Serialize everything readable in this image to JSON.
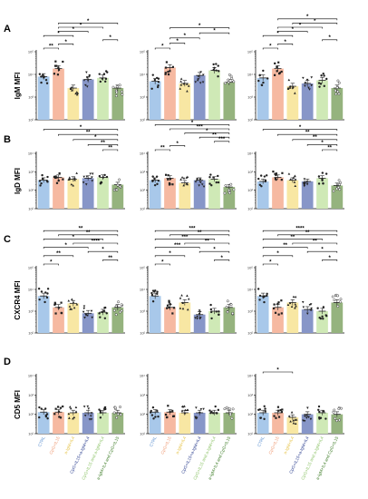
{
  "colors": {
    "CTRL": "#a8c8ea",
    "CpG+IL15": "#f6b9a1",
    "a-IgM+IL4": "#f8e7a3",
    "CpG+IL15+a-IgM+IL4": "#8796c8",
    "CpG+IL15 and a-IgM+IL4": "#cfe9b6",
    "a-IgM+IL4 and CpG+IL15": "#95b37e"
  },
  "label_colors": {
    "CTRL": "#5b8fd0",
    "CpG+IL15": "#ef9a73",
    "a-IgM+IL4": "#e6c44a",
    "CpG+IL15+a-IgM+IL4": "#2c3f8f",
    "CpG+IL15 and a-IgM+IL4": "#8fc46b",
    "a-IgM+IL4 and CpG+IL15": "#3f7d28"
  },
  "chart_data": [
    {
      "row": "A",
      "col": 1,
      "type": "bar",
      "ylabel": "IgM MFI",
      "log_scale": true,
      "ylim_exp": [
        2,
        5
      ],
      "tick_labels": [
        "10²",
        "10³",
        "10⁴",
        "10⁵"
      ],
      "categories": [
        "CTRL",
        "CpG+IL15",
        "a-IgM+IL4",
        "CpG+IL15+a-IgM+IL4",
        "CpG+IL15 and a-IgM+IL4",
        "a-IgM+IL4 and CpG+IL15"
      ],
      "values": [
        8000,
        18000,
        2500,
        6000,
        7000,
        2500
      ],
      "significance": [
        {
          "from": 0,
          "to": 1,
          "label": "**"
        },
        {
          "from": 0,
          "to": 2,
          "label": "*"
        },
        {
          "from": 1,
          "to": 2,
          "label": "*"
        },
        {
          "from": 1,
          "to": 3,
          "label": "*"
        },
        {
          "from": 1,
          "to": 4,
          "label": "*"
        },
        {
          "from": 1,
          "to": 5,
          "label": "*"
        },
        {
          "from": 4,
          "to": 5,
          "label": "*"
        }
      ]
    },
    {
      "row": "A",
      "col": 2,
      "type": "bar",
      "ylabel": "",
      "log_scale": true,
      "ylim_exp": [
        2,
        5
      ],
      "tick_labels": [
        "10²",
        "10³",
        "10⁴",
        "10⁵"
      ],
      "categories": [
        "CTRL",
        "CpG+IL15",
        "a-IgM+IL4",
        "CpG+IL15+a-IgM+IL4",
        "CpG+IL15 and a-IgM+IL4",
        "a-IgM+IL4 and CpG+IL15"
      ],
      "values": [
        5000,
        20000,
        4000,
        9000,
        15000,
        4500
      ],
      "significance": [
        {
          "from": 0,
          "to": 1,
          "label": "*"
        },
        {
          "from": 1,
          "to": 2,
          "label": "*"
        },
        {
          "from": 1,
          "to": 3,
          "label": "*"
        },
        {
          "from": 1,
          "to": 5,
          "label": "*"
        },
        {
          "from": 3,
          "to": 5,
          "label": "*"
        }
      ]
    },
    {
      "row": "A",
      "col": 3,
      "type": "bar",
      "ylabel": "",
      "log_scale": true,
      "ylim_exp": [
        2,
        5
      ],
      "tick_labels": [
        "10²",
        "10³",
        "10⁴",
        "10⁵"
      ],
      "categories": [
        "CTRL",
        "CpG+IL15",
        "a-IgM+IL4",
        "CpG+IL15+a-IgM+IL4",
        "CpG+IL15 and a-IgM+IL4",
        "a-IgM+IL4 and CpG+IL15"
      ],
      "values": [
        7000,
        18000,
        3000,
        4000,
        5500,
        2500
      ],
      "significance": [
        {
          "from": 0,
          "to": 1,
          "label": "*"
        },
        {
          "from": 0,
          "to": 2,
          "label": "*"
        },
        {
          "from": 1,
          "to": 2,
          "label": "*"
        },
        {
          "from": 1,
          "to": 3,
          "label": "*"
        },
        {
          "from": 1,
          "to": 4,
          "label": "*"
        },
        {
          "from": 1,
          "to": 5,
          "label": "*"
        },
        {
          "from": 2,
          "to": 5,
          "label": "*"
        },
        {
          "from": 4,
          "to": 5,
          "label": "*"
        }
      ]
    },
    {
      "row": "B",
      "col": 1,
      "type": "bar",
      "ylabel": "IgD MFI",
      "log_scale": true,
      "ylim_exp": [
        1,
        4
      ],
      "tick_labels": [
        "10¹",
        "10²",
        "10³",
        "10⁴"
      ],
      "categories": [
        "CTRL",
        "CpG+IL15",
        "a-IgM+IL4",
        "CpG+IL15+a-IgM+IL4",
        "CpG+IL15 and a-IgM+IL4",
        "a-IgM+IL4 and CpG+IL15"
      ],
      "values": [
        350,
        500,
        400,
        450,
        500,
        200
      ],
      "significance": [
        {
          "from": 0,
          "to": 5,
          "label": "*"
        },
        {
          "from": 1,
          "to": 5,
          "label": "**"
        },
        {
          "from": 2,
          "to": 5,
          "label": "*"
        },
        {
          "from": 3,
          "to": 5,
          "label": "**"
        },
        {
          "from": 4,
          "to": 5,
          "label": "**"
        }
      ]
    },
    {
      "row": "B",
      "col": 2,
      "type": "bar",
      "ylabel": "",
      "log_scale": true,
      "ylim_exp": [
        1,
        4
      ],
      "tick_labels": [
        "10¹",
        "10²",
        "10³",
        "10⁴"
      ],
      "categories": [
        "CTRL",
        "CpG+IL15",
        "a-IgM+IL4",
        "CpG+IL15+a-IgM+IL4",
        "CpG+IL15 and a-IgM+IL4",
        "a-IgM+IL4 and CpG+IL15"
      ],
      "values": [
        350,
        450,
        250,
        350,
        400,
        150
      ],
      "significance": [
        {
          "from": 0,
          "to": 1,
          "label": "**"
        },
        {
          "from": 0,
          "to": 5,
          "label": "*"
        },
        {
          "from": 1,
          "to": 2,
          "label": "*"
        },
        {
          "from": 1,
          "to": 5,
          "label": "***"
        },
        {
          "from": 2,
          "to": 5,
          "label": "*"
        },
        {
          "from": 3,
          "to": 5,
          "label": "**"
        },
        {
          "from": 4,
          "to": 5,
          "label": "***"
        }
      ]
    },
    {
      "row": "B",
      "col": 3,
      "type": "bar",
      "ylabel": "",
      "log_scale": true,
      "ylim_exp": [
        1,
        4
      ],
      "tick_labels": [
        "10¹",
        "10²",
        "10³",
        "10⁴"
      ],
      "categories": [
        "CTRL",
        "CpG+IL15",
        "a-IgM+IL4",
        "CpG+IL15+a-IgM+IL4",
        "CpG+IL15 and a-IgM+IL4",
        "a-IgM+IL4 and CpG+IL15"
      ],
      "values": [
        300,
        500,
        350,
        300,
        450,
        180
      ],
      "significance": [
        {
          "from": 0,
          "to": 5,
          "label": "*"
        },
        {
          "from": 1,
          "to": 5,
          "label": "**"
        },
        {
          "from": 2,
          "to": 5,
          "label": "**"
        },
        {
          "from": 3,
          "to": 5,
          "label": "*"
        },
        {
          "from": 4,
          "to": 5,
          "label": "**"
        }
      ]
    },
    {
      "row": "C",
      "col": 1,
      "type": "bar",
      "ylabel": "CXCR4 MFI",
      "log_scale": true,
      "ylim_exp": [
        2,
        5
      ],
      "tick_labels": [
        "10²",
        "10³",
        "10⁴",
        "10⁵"
      ],
      "categories": [
        "CTRL",
        "CpG+IL15",
        "a-IgM+IL4",
        "CpG+IL15+a-IgM+IL4",
        "CpG+IL15 and a-IgM+IL4",
        "a-IgM+IL4 and CpG+IL15"
      ],
      "values": [
        5000,
        1500,
        2300,
        800,
        900,
        1500
      ],
      "significance": [
        {
          "from": 0,
          "to": 1,
          "label": "*"
        },
        {
          "from": 0,
          "to": 2,
          "label": "**"
        },
        {
          "from": 0,
          "to": 3,
          "label": "*"
        },
        {
          "from": 0,
          "to": 4,
          "label": "*"
        },
        {
          "from": 0,
          "to": 5,
          "label": "**"
        },
        {
          "from": 1,
          "to": 5,
          "label": "**"
        },
        {
          "from": 2,
          "to": 5,
          "label": "****"
        },
        {
          "from": 3,
          "to": 5,
          "label": "*"
        },
        {
          "from": 4,
          "to": 5,
          "label": "**"
        }
      ]
    },
    {
      "row": "C",
      "col": 2,
      "type": "bar",
      "ylabel": "",
      "log_scale": true,
      "ylim_exp": [
        2,
        5
      ],
      "tick_labels": [
        "10²",
        "10³",
        "10⁴",
        "10⁵"
      ],
      "categories": [
        "CTRL",
        "CpG+IL15",
        "a-IgM+IL4",
        "CpG+IL15+a-IgM+IL4",
        "CpG+IL15 and a-IgM+IL4",
        "a-IgM+IL4 and CpG+IL15"
      ],
      "values": [
        5000,
        1500,
        2500,
        700,
        1000,
        1500
      ],
      "significance": [
        {
          "from": 0,
          "to": 1,
          "label": "*"
        },
        {
          "from": 0,
          "to": 2,
          "label": "*"
        },
        {
          "from": 0,
          "to": 3,
          "label": "***"
        },
        {
          "from": 0,
          "to": 4,
          "label": "***"
        },
        {
          "from": 0,
          "to": 5,
          "label": "***"
        },
        {
          "from": 1,
          "to": 5,
          "label": "**"
        },
        {
          "from": 2,
          "to": 5,
          "label": "**"
        },
        {
          "from": 3,
          "to": 5,
          "label": "*"
        },
        {
          "from": 4,
          "to": 5,
          "label": "*"
        }
      ]
    },
    {
      "row": "C",
      "col": 3,
      "type": "bar",
      "ylabel": "",
      "log_scale": true,
      "ylim_exp": [
        2,
        5
      ],
      "tick_labels": [
        "10²",
        "10³",
        "10⁴",
        "10⁵"
      ],
      "categories": [
        "CTRL",
        "CpG+IL15",
        "a-IgM+IL4",
        "CpG+IL15+a-IgM+IL4",
        "CpG+IL15 and a-IgM+IL4",
        "a-IgM+IL4 and CpG+IL15"
      ],
      "values": [
        5000,
        1500,
        2500,
        1200,
        1000,
        2500
      ],
      "significance": [
        {
          "from": 0,
          "to": 1,
          "label": "*"
        },
        {
          "from": 0,
          "to": 2,
          "label": "*"
        },
        {
          "from": 0,
          "to": 3,
          "label": "**"
        },
        {
          "from": 0,
          "to": 4,
          "label": "**"
        },
        {
          "from": 0,
          "to": 5,
          "label": "****"
        },
        {
          "from": 1,
          "to": 5,
          "label": "**"
        },
        {
          "from": 2,
          "to": 5,
          "label": "**"
        },
        {
          "from": 3,
          "to": 5,
          "label": "*"
        },
        {
          "from": 4,
          "to": 5,
          "label": "*"
        }
      ]
    },
    {
      "row": "D",
      "col": 1,
      "type": "bar",
      "ylabel": "CD5 MFI",
      "log_scale": true,
      "ylim_exp": [
        1,
        4
      ],
      "tick_labels": [
        "10¹",
        "10²",
        "10³",
        "10⁴"
      ],
      "categories": [
        "CTRL",
        "CpG+IL15",
        "a-IgM+IL4",
        "CpG+IL15+a-IgM+IL4",
        "CpG+IL15 and a-IgM+IL4",
        "a-IgM+IL4 and CpG+IL15"
      ],
      "values": [
        130,
        130,
        120,
        120,
        120,
        120
      ],
      "significance": []
    },
    {
      "row": "D",
      "col": 2,
      "type": "bar",
      "ylabel": "",
      "log_scale": true,
      "ylim_exp": [
        1,
        4
      ],
      "tick_labels": [
        "10¹",
        "10²",
        "10³",
        "10⁴"
      ],
      "categories": [
        "CTRL",
        "CpG+IL15",
        "a-IgM+IL4",
        "CpG+IL15+a-IgM+IL4",
        "CpG+IL15 and a-IgM+IL4",
        "a-IgM+IL4 and CpG+IL15"
      ],
      "values": [
        130,
        130,
        120,
        120,
        120,
        120
      ],
      "significance": []
    },
    {
      "row": "D",
      "col": 3,
      "type": "bar",
      "ylabel": "",
      "log_scale": true,
      "ylim_exp": [
        1,
        4
      ],
      "tick_labels": [
        "10¹",
        "10²",
        "10³",
        "10⁴"
      ],
      "categories": [
        "CTRL",
        "CpG+IL15",
        "a-IgM+IL4",
        "CpG+IL15+a-IgM+IL4",
        "CpG+IL15 and a-IgM+IL4",
        "a-IgM+IL4 and CpG+IL15"
      ],
      "values": [
        120,
        120,
        70,
        100,
        120,
        100
      ],
      "significance": [
        {
          "from": 0,
          "to": 2,
          "label": "*"
        }
      ]
    }
  ]
}
